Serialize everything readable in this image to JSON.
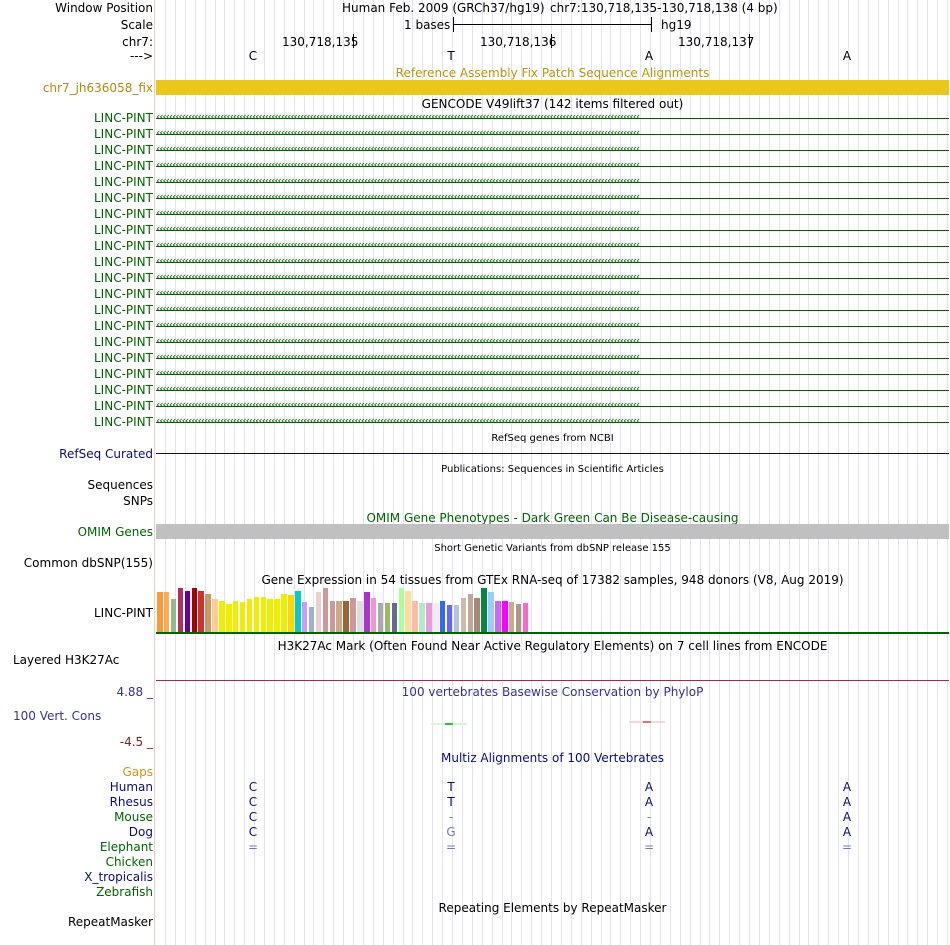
{
  "header": {
    "window_position_label": "Window Position",
    "assembly": "Human Feb. 2009 (GRCh37/hg19)",
    "position": "chr7:130,718,135-130,718,138 (4 bp)",
    "scale_label": "Scale",
    "scale_value": "1 bases",
    "scale_db": "hg19",
    "chrom_label": "chr7:",
    "coords": [
      "130,718,135",
      "130,718,136",
      "130,718,137"
    ],
    "strand_label": "--->",
    "bases": [
      "C",
      "T",
      "A",
      "A"
    ]
  },
  "tracks": {
    "fix_patch": {
      "title": "Reference Assembly Fix Patch Sequence Alignments",
      "label": "chr7_jh636058_fix",
      "color": "#e8c81a"
    },
    "gencode": {
      "title": "GENCODE V49lift37 (142 items filtered out)",
      "items": [
        "LINC-PINT",
        "LINC-PINT",
        "LINC-PINT",
        "LINC-PINT",
        "LINC-PINT",
        "LINC-PINT",
        "LINC-PINT",
        "LINC-PINT",
        "LINC-PINT",
        "LINC-PINT",
        "LINC-PINT",
        "LINC-PINT",
        "LINC-PINT",
        "LINC-PINT",
        "LINC-PINT",
        "LINC-PINT",
        "LINC-PINT",
        "LINC-PINT",
        "LINC-PINT",
        "LINC-PINT"
      ],
      "arrows": "‹‹‹‹‹‹‹‹‹‹‹‹‹‹‹‹‹‹‹‹‹‹‹‹‹‹‹‹‹‹‹‹‹‹‹‹‹‹‹‹‹‹‹‹‹‹‹‹‹‹‹‹‹‹‹‹‹‹‹‹‹‹‹‹‹‹‹‹‹‹‹‹‹‹‹‹‹‹‹‹‹‹‹‹‹‹‹‹‹‹‹‹‹‹‹‹‹‹‹‹‹‹‹‹‹‹‹‹‹‹‹‹‹‹‹‹‹‹‹‹‹‹‹‹‹‹‹‹‹‹‹‹‹‹‹‹‹‹‹‹‹‹‹‹‹‹‹‹‹‹‹",
      "color": "#006400"
    },
    "refseq": {
      "title": "RefSeq genes from NCBI",
      "label": "RefSeq Curated",
      "color": "#0c0c78"
    },
    "publications": {
      "title": "Publications: Sequences in Scientific Articles",
      "label": "Sequences"
    },
    "snps": {
      "label": "SNPs"
    },
    "omim": {
      "title": "OMIM Gene Phenotypes - Dark Green Can Be Disease-causing",
      "label": "OMIM Genes",
      "color": "#006400",
      "bar_color": "#c0c0c0"
    },
    "dbsnp": {
      "title": "Short Genetic Variants from dbSNP release 155",
      "label": "Common dbSNP(155)"
    },
    "gtex": {
      "title": "Gene Expression in 54 tissues from GTEx RNA-seq of 17382 samples, 948 donors (V8, Aug 2019)",
      "label": "LINC-PINT",
      "tissue_levels": [
        0.92,
        0.92,
        0.75,
        1.0,
        0.93,
        1.0,
        0.93,
        0.86,
        0.74,
        0.71,
        0.64,
        0.71,
        0.69,
        0.76,
        0.79,
        0.79,
        0.76,
        0.74,
        0.86,
        0.83,
        0.93,
        0.69,
        0.57,
        0.92,
        1.0,
        0.71,
        0.71,
        0.71,
        0.78,
        0.71,
        0.91,
        0.78,
        0.66,
        0.66,
        0.66,
        1.0,
        0.93,
        0.71,
        0.66,
        0.66,
        0.66,
        0.71,
        0.61,
        0.61,
        0.78,
        0.86,
        0.78,
        1.0,
        0.92,
        0.71,
        0.71,
        0.68,
        0.64,
        0.66
      ],
      "tissue_colors": [
        "#ff9933",
        "#ffaa55",
        "#8fbc8f",
        "#b0305a",
        "#660099",
        "#aa0000",
        "#cc3333",
        "#cc9966",
        "#ffcc99",
        "#eeee00",
        "#eeee00",
        "#eeee00",
        "#eeee00",
        "#eeee00",
        "#eeee00",
        "#eeee00",
        "#eeee00",
        "#eeee00",
        "#eeee00",
        "#ffd700",
        "#00cccc",
        "#cc99ff",
        "#99b3cc",
        "#eecfcf",
        "#cc9999",
        "#cc9999",
        "#ccaa88",
        "#996633",
        "#cc9999",
        "#dddddd",
        "#aa33cc",
        "#ee99cc",
        "#aaaaaa",
        "#99bb66",
        "#666699",
        "#aaff99",
        "#ffdd99",
        "#ffbbaa",
        "#aaeecc",
        "#ee99dd",
        "#eeeeee",
        "#3366ff",
        "#6666ff",
        "#b0c4de",
        "#ccbbaa",
        "#bbaa99",
        "#aa8877",
        "#008844",
        "#99ccff",
        "#cc66ff",
        "#ff00ff",
        "#ccaa88",
        "#aa9988",
        "#ff66cc"
      ]
    },
    "h3k27ac": {
      "title": "H3K27Ac Mark (Often Found Near Active Regulatory Elements) on 7 cell lines from ENCODE",
      "label": "Layered H3K27Ac"
    },
    "conservation": {
      "title": "100 vertebrates Basewise Conservation by PhyloP",
      "label": "100 Vert. Cons",
      "max_label": "4.88 _",
      "min_label": "-4.5 _",
      "values": [
        0,
        0.35,
        -0.3,
        0
      ]
    },
    "multiz": {
      "title": "Multiz Alignments of 100 Vertebrates",
      "gaps_label": "Gaps",
      "species": [
        {
          "name": "Human",
          "bases": [
            "C",
            "T",
            "A",
            "A"
          ]
        },
        {
          "name": "Rhesus",
          "bases": [
            "C",
            "T",
            "A",
            "A"
          ]
        },
        {
          "name": "Mouse",
          "bases": [
            "C",
            "-",
            "-",
            "A"
          ]
        },
        {
          "name": "Dog",
          "bases": [
            "C",
            "G",
            "A",
            "A"
          ]
        },
        {
          "name": "Elephant",
          "bases": [
            "=",
            "=",
            "=",
            "="
          ]
        },
        {
          "name": "Chicken",
          "bases": [
            "",
            "",
            "",
            ""
          ]
        },
        {
          "name": "X_tropicalis",
          "bases": [
            "",
            "",
            "",
            ""
          ]
        },
        {
          "name": "Zebrafish",
          "bases": [
            "",
            "",
            "",
            ""
          ]
        }
      ]
    },
    "repeatmasker": {
      "title": "Repeating Elements by RepeatMasker",
      "label": "RepeatMasker"
    }
  },
  "colors": {
    "navy": "#0c0c78",
    "green": "#006400",
    "olive": "#b8860b",
    "gaps": "#d9901a",
    "maroon": "#8b1a1a"
  }
}
